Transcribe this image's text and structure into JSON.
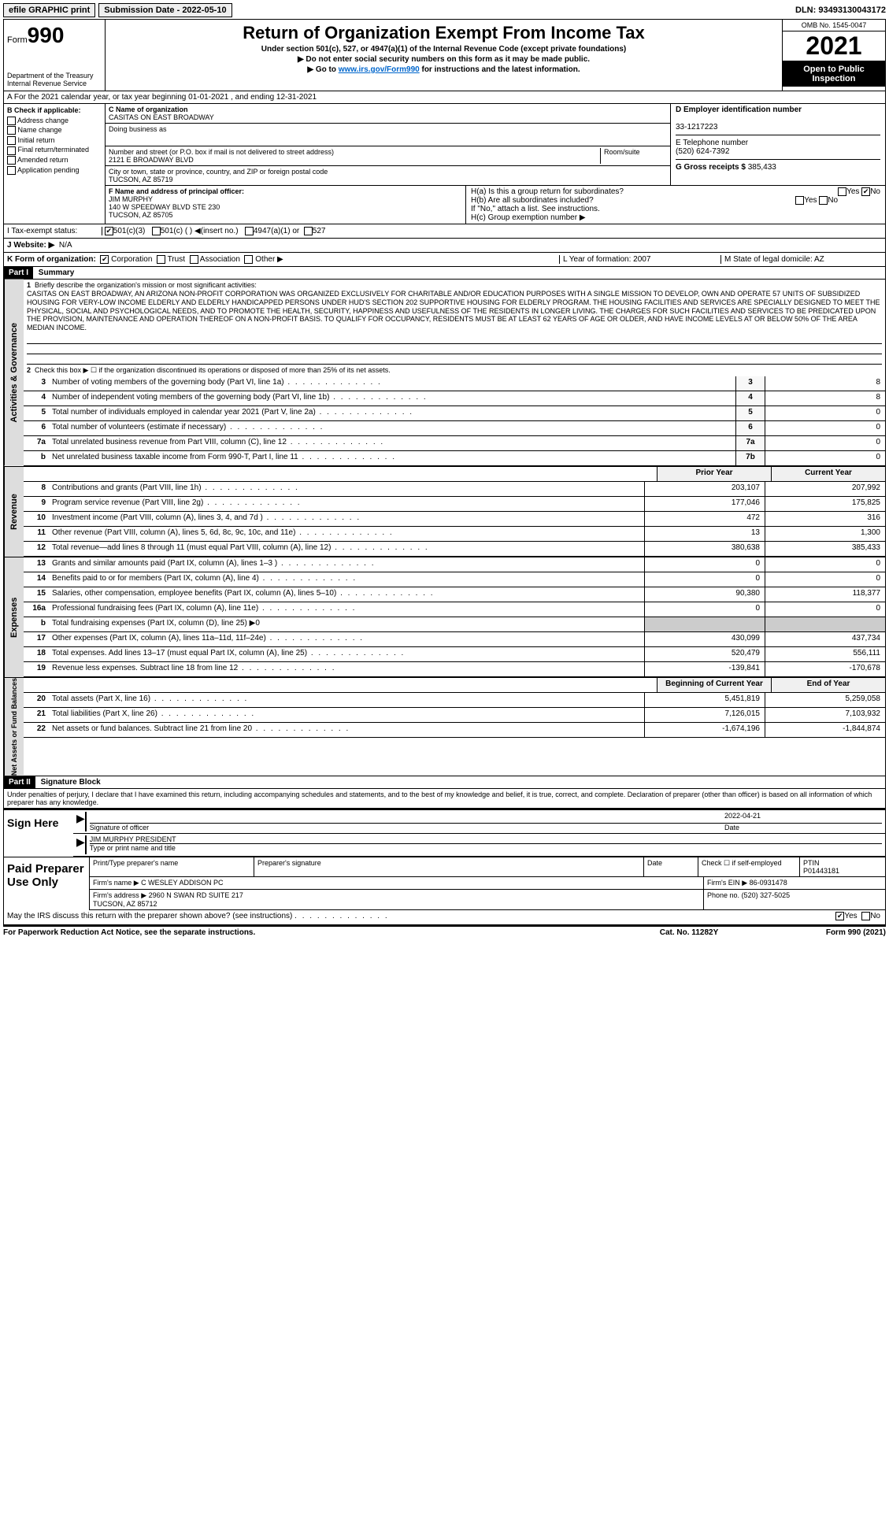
{
  "top": {
    "efile": "efile GRAPHIC print",
    "submission_label": "Submission Date - 2022-05-10",
    "dln": "DLN: 93493130043172"
  },
  "header": {
    "form_word": "Form",
    "form_num": "990",
    "dept": "Department of the Treasury\nInternal Revenue Service",
    "title": "Return of Organization Exempt From Income Tax",
    "sub1": "Under section 501(c), 527, or 4947(a)(1) of the Internal Revenue Code (except private foundations)",
    "sub2": "▶ Do not enter social security numbers on this form as it may be made public.",
    "sub3_pre": "▶ Go to ",
    "sub3_link": "www.irs.gov/Form990",
    "sub3_post": " for instructions and the latest information.",
    "omb": "OMB No. 1545-0047",
    "year": "2021",
    "open": "Open to Public Inspection"
  },
  "A": {
    "text": "A For the 2021 calendar year, or tax year beginning 01-01-2021   , and ending 12-31-2021"
  },
  "B": {
    "title": "B Check if applicable:",
    "items": [
      "Address change",
      "Name change",
      "Initial return",
      "Final return/terminated",
      "Amended return",
      "Application pending"
    ]
  },
  "C": {
    "name_label": "C Name of organization",
    "name": "CASITAS ON EAST BROADWAY",
    "dba_label": "Doing business as",
    "dba": "",
    "addr_label": "Number and street (or P.O. box if mail is not delivered to street address)",
    "room_label": "Room/suite",
    "addr": "2121 E BROADWAY BLVD",
    "city_label": "City or town, state or province, country, and ZIP or foreign postal code",
    "city": "TUCSON, AZ  85719"
  },
  "D": {
    "label": "D Employer identification number",
    "val": "33-1217223"
  },
  "E": {
    "label": "E Telephone number",
    "val": "(520) 624-7392"
  },
  "G": {
    "label": "G Gross receipts $",
    "val": "385,433"
  },
  "F": {
    "label": "F  Name and address of principal officer:",
    "name": "JIM MURPHY",
    "addr": "140 W SPEEDWAY BLVD STE 230\nTUCSON, AZ  85705"
  },
  "H": {
    "a": "H(a)  Is this a group return for subordinates?",
    "a_yes": "Yes",
    "a_no": "No",
    "b": "H(b)  Are all subordinates included?",
    "b_yes": "Yes",
    "b_no": "No",
    "b_note": "If \"No,\" attach a list. See instructions.",
    "c": "H(c)  Group exemption number ▶"
  },
  "I": {
    "label": "I   Tax-exempt status:",
    "o1": "501(c)(3)",
    "o2": "501(c) (  ) ◀(insert no.)",
    "o3": "4947(a)(1) or",
    "o4": "527"
  },
  "J": {
    "label": "J  Website: ▶",
    "val": "N/A"
  },
  "K": {
    "label": "K Form of organization:",
    "o1": "Corporation",
    "o2": "Trust",
    "o3": "Association",
    "o4": "Other ▶",
    "L": "L Year of formation: 2007",
    "M": "M State of legal domicile: AZ"
  },
  "part1": {
    "hdr": "Part I",
    "title": "Summary",
    "l1_label": "Briefly describe the organization's mission or most significant activities:",
    "l1_text": "CASITAS ON EAST BROADWAY, AN ARIZONA NON-PROFIT CORPORATION WAS ORGANIZED EXCLUSIVELY FOR CHARITABLE AND/OR EDUCATION PURPOSES WITH A SINGLE MISSION TO DEVELOP, OWN AND OPERATE 57 UNITS OF SUBSIDIZED HOUSING FOR VERY-LOW INCOME ELDERLY AND ELDERLY HANDICAPPED PERSONS UNDER HUD'S SECTION 202 SUPPORTIVE HOUSING FOR ELDERLY PROGRAM. THE HOUSING FACILITIES AND SERVICES ARE SPECIALLY DESIGNED TO MEET THE PHYSICAL, SOCIAL AND PSYCHOLOGICAL NEEDS, AND TO PROMOTE THE HEALTH, SECURITY, HAPPINESS AND USEFULNESS OF THE RESIDENTS IN LONGER LIVING. THE CHARGES FOR SUCH FACILITIES AND SERVICES TO BE PREDICATED UPON THE PROVISION, MAINTENANCE AND OPERATION THEREOF ON A NON-PROFIT BASIS. TO QUALIFY FOR OCCUPANCY, RESIDENTS MUST BE AT LEAST 62 YEARS OF AGE OR OLDER, AND HAVE INCOME LEVELS AT OR BELOW 50% OF THE AREA MEDIAN INCOME.",
    "l2": "Check this box ▶ ☐ if the organization discontinued its operations or disposed of more than 25% of its net assets.",
    "lines_num": [
      {
        "n": "3",
        "t": "Number of voting members of the governing body (Part VI, line 1a)",
        "box": "3",
        "v": "8"
      },
      {
        "n": "4",
        "t": "Number of independent voting members of the governing body (Part VI, line 1b)",
        "box": "4",
        "v": "8"
      },
      {
        "n": "5",
        "t": "Total number of individuals employed in calendar year 2021 (Part V, line 2a)",
        "box": "5",
        "v": "0"
      },
      {
        "n": "6",
        "t": "Total number of volunteers (estimate if necessary)",
        "box": "6",
        "v": "0"
      },
      {
        "n": "7a",
        "t": "Total unrelated business revenue from Part VIII, column (C), line 12",
        "box": "7a",
        "v": "0"
      },
      {
        "n": "b",
        "t": "Net unrelated business taxable income from Form 990-T, Part I, line 11",
        "box": "7b",
        "v": "0"
      }
    ],
    "col_hdr_prior": "Prior Year",
    "col_hdr_curr": "Current Year",
    "rev": [
      {
        "n": "8",
        "t": "Contributions and grants (Part VIII, line 1h)",
        "p": "203,107",
        "c": "207,992"
      },
      {
        "n": "9",
        "t": "Program service revenue (Part VIII, line 2g)",
        "p": "177,046",
        "c": "175,825"
      },
      {
        "n": "10",
        "t": "Investment income (Part VIII, column (A), lines 3, 4, and 7d )",
        "p": "472",
        "c": "316"
      },
      {
        "n": "11",
        "t": "Other revenue (Part VIII, column (A), lines 5, 6d, 8c, 9c, 10c, and 11e)",
        "p": "13",
        "c": "1,300"
      },
      {
        "n": "12",
        "t": "Total revenue—add lines 8 through 11 (must equal Part VIII, column (A), line 12)",
        "p": "380,638",
        "c": "385,433"
      }
    ],
    "exp": [
      {
        "n": "13",
        "t": "Grants and similar amounts paid (Part IX, column (A), lines 1–3 )",
        "p": "0",
        "c": "0"
      },
      {
        "n": "14",
        "t": "Benefits paid to or for members (Part IX, column (A), line 4)",
        "p": "0",
        "c": "0"
      },
      {
        "n": "15",
        "t": "Salaries, other compensation, employee benefits (Part IX, column (A), lines 5–10)",
        "p": "90,380",
        "c": "118,377"
      },
      {
        "n": "16a",
        "t": "Professional fundraising fees (Part IX, column (A), line 11e)",
        "p": "0",
        "c": "0"
      },
      {
        "n": "b",
        "t": "Total fundraising expenses (Part IX, column (D), line 25) ▶0",
        "p": "",
        "c": "",
        "shade": true
      },
      {
        "n": "17",
        "t": "Other expenses (Part IX, column (A), lines 11a–11d, 11f–24e)",
        "p": "430,099",
        "c": "437,734"
      },
      {
        "n": "18",
        "t": "Total expenses. Add lines 13–17 (must equal Part IX, column (A), line 25)",
        "p": "520,479",
        "c": "556,111"
      },
      {
        "n": "19",
        "t": "Revenue less expenses. Subtract line 18 from line 12",
        "p": "-139,841",
        "c": "-170,678"
      }
    ],
    "col_hdr_beg": "Beginning of Current Year",
    "col_hdr_end": "End of Year",
    "net": [
      {
        "n": "20",
        "t": "Total assets (Part X, line 16)",
        "p": "5,451,819",
        "c": "5,259,058"
      },
      {
        "n": "21",
        "t": "Total liabilities (Part X, line 26)",
        "p": "7,126,015",
        "c": "7,103,932"
      },
      {
        "n": "22",
        "t": "Net assets or fund balances. Subtract line 21 from line 20",
        "p": "-1,674,196",
        "c": "-1,844,874"
      }
    ],
    "side_act": "Activities & Governance",
    "side_rev": "Revenue",
    "side_exp": "Expenses",
    "side_net": "Net Assets or Fund Balances"
  },
  "part2": {
    "hdr": "Part II",
    "title": "Signature Block",
    "perjury": "Under penalties of perjury, I declare that I have examined this return, including accompanying schedules and statements, and to the best of my knowledge and belief, it is true, correct, and complete. Declaration of preparer (other than officer) is based on all information of which preparer has any knowledge.",
    "sign_here": "Sign Here",
    "sig_officer": "Signature of officer",
    "sig_date": "2022-04-21",
    "date_label": "Date",
    "officer_name": "JIM MURPHY PRESIDENT",
    "type_name": "Type or print name and title",
    "paid": "Paid Preparer Use Only",
    "pp_h1": "Print/Type preparer's name",
    "pp_h2": "Preparer's signature",
    "pp_h3": "Date",
    "pp_h4_a": "Check ☐ if self-employed",
    "pp_h4_b": "PTIN",
    "pp_ptin": "P01443181",
    "firm_name_l": "Firm's name     ▶",
    "firm_name": "C WESLEY ADDISON PC",
    "firm_ein_l": "Firm's EIN ▶",
    "firm_ein": "86-0931478",
    "firm_addr_l": "Firm's address ▶",
    "firm_addr": "2960 N SWAN RD SUITE 217\nTUCSON, AZ  85712",
    "phone_l": "Phone no.",
    "phone": "(520) 327-5025",
    "discuss": "May the IRS discuss this return with the preparer shown above? (see instructions)",
    "d_yes": "Yes",
    "d_no": "No"
  },
  "footer": {
    "left": "For Paperwork Reduction Act Notice, see the separate instructions.",
    "mid": "Cat. No. 11282Y",
    "right": "Form 990 (2021)"
  }
}
